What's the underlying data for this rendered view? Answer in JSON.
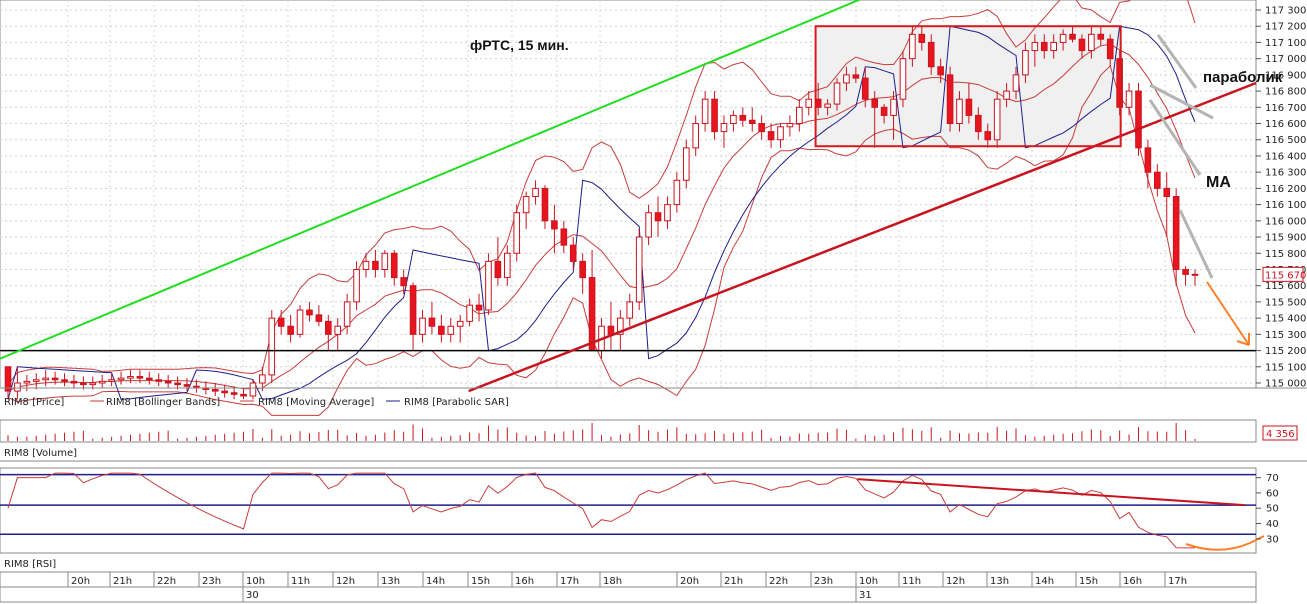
{
  "chart_data": {
    "type": "candlestick",
    "title": "фРТС, 15 мин.",
    "series_names": {
      "price": "RIM8 [Price]",
      "bollinger": "RIM8 [Bollinger Bands]",
      "ma": "RIM8 [Moving Average]",
      "sar": "RIM8 [Parabolic SAR]",
      "volume": "RIM8 [Volume]",
      "rsi": "RIM8 [RSI]"
    },
    "price_axis": {
      "ylim": [
        115000,
        117300
      ],
      "ticks": [
        "117 300",
        "117 200",
        "117 100",
        "117 000",
        "116 900",
        "116 800",
        "116 700",
        "116 600",
        "116 500",
        "116 400",
        "116 300",
        "116 200",
        "116 100",
        "116 000",
        "115 900",
        "115 800",
        "115 700",
        "115 600",
        "115 500",
        "115 400",
        "115 300",
        "115 200",
        "115 100",
        "115 000"
      ]
    },
    "last_price_label": "115 670",
    "volume_label": "4 356",
    "rsi_axis": {
      "ylim": [
        22,
        75
      ],
      "ticks": [
        "70",
        "60",
        "50",
        "40",
        "30"
      ],
      "levels": [
        72,
        52,
        33
      ]
    },
    "time_axis": {
      "hours": [
        "20h",
        "21h",
        "22h",
        "23h",
        "10h",
        "11h",
        "12h",
        "13h",
        "14h",
        "15h",
        "16h",
        "17h",
        "18h",
        "20h",
        "21h",
        "22h",
        "23h",
        "10h",
        "11h",
        "12h",
        "13h",
        "14h",
        "15h",
        "16h",
        "17h"
      ],
      "dates": [
        "30",
        "31"
      ]
    },
    "candles": [
      [
        115100,
        115100,
        114900,
        114950
      ],
      [
        114950,
        115100,
        114900,
        115000
      ],
      [
        115000,
        115050,
        114950,
        115010
      ],
      [
        115010,
        115060,
        114960,
        115020
      ],
      [
        115020,
        115080,
        114980,
        115030
      ],
      [
        115030,
        115070,
        114990,
        115020
      ],
      [
        115020,
        115060,
        114980,
        115010
      ],
      [
        115010,
        115050,
        114970,
        115000
      ],
      [
        115000,
        115040,
        114960,
        114990
      ],
      [
        114990,
        115040,
        114960,
        115000
      ],
      [
        115000,
        115050,
        114970,
        115010
      ],
      [
        115010,
        115060,
        114980,
        115020
      ],
      [
        115020,
        115070,
        114990,
        115030
      ],
      [
        115030,
        115080,
        115000,
        115040
      ],
      [
        115040,
        115080,
        115000,
        115030
      ],
      [
        115030,
        115070,
        114990,
        115020
      ],
      [
        115020,
        115060,
        114980,
        115010
      ],
      [
        115010,
        115050,
        114970,
        115000
      ],
      [
        115000,
        115040,
        114960,
        114990
      ],
      [
        114990,
        115030,
        114950,
        114980
      ],
      [
        114980,
        115020,
        114940,
        114970
      ],
      [
        114970,
        115010,
        114930,
        114960
      ],
      [
        114960,
        115000,
        114920,
        114950
      ],
      [
        114950,
        114990,
        114910,
        114940
      ],
      [
        114940,
        114980,
        114900,
        114930
      ],
      [
        114930,
        114970,
        114900,
        114920
      ],
      [
        114920,
        115020,
        114900,
        115000
      ],
      [
        115000,
        115100,
        114950,
        115050
      ],
      [
        115050,
        115450,
        115000,
        115400
      ],
      [
        115400,
        115450,
        115300,
        115350
      ],
      [
        115350,
        115420,
        115250,
        115300
      ],
      [
        115300,
        115480,
        115280,
        115450
      ],
      [
        115450,
        115500,
        115380,
        115420
      ],
      [
        115420,
        115480,
        115350,
        115380
      ],
      [
        115380,
        115420,
        115200,
        115300
      ],
      [
        115300,
        115400,
        115200,
        115350
      ],
      [
        115350,
        115550,
        115300,
        115500
      ],
      [
        115500,
        115750,
        115450,
        115700
      ],
      [
        115700,
        115800,
        115650,
        115750
      ],
      [
        115750,
        115820,
        115650,
        115700
      ],
      [
        115700,
        115820,
        115650,
        115800
      ],
      [
        115800,
        115820,
        115600,
        115650
      ],
      [
        115650,
        115700,
        115550,
        115600
      ],
      [
        115600,
        115620,
        115200,
        115300
      ],
      [
        115300,
        115450,
        115250,
        115400
      ],
      [
        115400,
        115500,
        115300,
        115350
      ],
      [
        115350,
        115420,
        115250,
        115300
      ],
      [
        115300,
        115400,
        115250,
        115350
      ],
      [
        115350,
        115420,
        115250,
        115380
      ],
      [
        115380,
        115520,
        115350,
        115480
      ],
      [
        115480,
        115550,
        115380,
        115450
      ],
      [
        115450,
        115800,
        115420,
        115750
      ],
      [
        115750,
        115900,
        115600,
        115650
      ],
      [
        115650,
        115850,
        115600,
        115800
      ],
      [
        115800,
        116100,
        115750,
        116050
      ],
      [
        116050,
        116180,
        115950,
        116150
      ],
      [
        116150,
        116250,
        116100,
        116200
      ],
      [
        116200,
        116220,
        115950,
        116000
      ],
      [
        116000,
        116100,
        115800,
        115950
      ],
      [
        115950,
        116000,
        115800,
        115850
      ],
      [
        115850,
        115900,
        115700,
        115750
      ],
      [
        115750,
        115800,
        115550,
        115650
      ],
      [
        115650,
        115820,
        115200,
        115200
      ],
      [
        115200,
        115400,
        115150,
        115350
      ],
      [
        115350,
        115500,
        115200,
        115300
      ],
      [
        115300,
        115450,
        115200,
        115400
      ],
      [
        115400,
        115550,
        115350,
        115500
      ],
      [
        115500,
        115950,
        115450,
        115900
      ],
      [
        115900,
        116100,
        115850,
        116050
      ],
      [
        116050,
        116150,
        115900,
        116000
      ],
      [
        116000,
        116150,
        115950,
        116100
      ],
      [
        116100,
        116300,
        116050,
        116250
      ],
      [
        116250,
        116500,
        116200,
        116450
      ],
      [
        116450,
        116650,
        116400,
        116600
      ],
      [
        116600,
        116800,
        116550,
        116750
      ],
      [
        116750,
        116800,
        116500,
        116550
      ],
      [
        116550,
        116650,
        116450,
        116600
      ],
      [
        116600,
        116680,
        116550,
        116650
      ],
      [
        116650,
        116700,
        116580,
        116620
      ],
      [
        116620,
        116700,
        116550,
        116600
      ],
      [
        116600,
        116650,
        116500,
        116550
      ],
      [
        116550,
        116600,
        116450,
        116500
      ],
      [
        116500,
        116600,
        116450,
        116580
      ],
      [
        116580,
        116650,
        116520,
        116600
      ],
      [
        116600,
        116750,
        116550,
        116700
      ],
      [
        116700,
        116800,
        116650,
        116750
      ],
      [
        116750,
        116850,
        116650,
        116700
      ],
      [
        116700,
        116750,
        116650,
        116720
      ],
      [
        116720,
        116880,
        116680,
        116850
      ],
      [
        116850,
        116950,
        116800,
        116900
      ],
      [
        116900,
        116950,
        116850,
        116880
      ],
      [
        116880,
        116950,
        116700,
        116750
      ],
      [
        116750,
        116800,
        116450,
        116700
      ],
      [
        116700,
        116720,
        116600,
        116650
      ],
      [
        116650,
        116800,
        116500,
        116750
      ],
      [
        116750,
        117050,
        116700,
        117000
      ],
      [
        117000,
        117200,
        116950,
        117150
      ],
      [
        117150,
        117200,
        117050,
        117100
      ],
      [
        117100,
        117150,
        116900,
        116950
      ],
      [
        116950,
        117000,
        116850,
        116900
      ],
      [
        116900,
        116950,
        116550,
        116600
      ],
      [
        116600,
        116800,
        116550,
        116750
      ],
      [
        116750,
        116850,
        116600,
        116650
      ],
      [
        116650,
        116700,
        116500,
        116550
      ],
      [
        116550,
        116600,
        116450,
        116500
      ],
      [
        116500,
        116800,
        116450,
        116750
      ],
      [
        116750,
        116850,
        116700,
        116800
      ],
      [
        116800,
        116950,
        116750,
        116900
      ],
      [
        116900,
        117100,
        116850,
        117050
      ],
      [
        117050,
        117150,
        116950,
        117100
      ],
      [
        117100,
        117150,
        117000,
        117050
      ],
      [
        117050,
        117150,
        117000,
        117100
      ],
      [
        117100,
        117180,
        117050,
        117150
      ],
      [
        117150,
        117200,
        117100,
        117120
      ],
      [
        117120,
        117150,
        117000,
        117050
      ],
      [
        117050,
        117200,
        117000,
        117150
      ],
      [
        117150,
        117200,
        117080,
        117120
      ],
      [
        117120,
        117150,
        116950,
        117000
      ],
      [
        117000,
        117050,
        116650,
        116700
      ],
      [
        116700,
        116850,
        116650,
        116800
      ],
      [
        116800,
        116850,
        116400,
        116450
      ],
      [
        116450,
        116500,
        116200,
        116300
      ],
      [
        116300,
        116350,
        116150,
        116200
      ],
      [
        116200,
        116300,
        115900,
        116150
      ],
      [
        116150,
        116200,
        115600,
        115700
      ],
      [
        115700,
        115720,
        115600,
        115670
      ],
      [
        115670,
        115700,
        115600,
        115670
      ]
    ]
  },
  "annotations": {
    "parabolic": "параболик",
    "ma": "MA"
  },
  "colors": {
    "up": "#ffffff",
    "down": "#e8141e",
    "candle_outline": "#c8141e",
    "bollinger": "#c83c3c",
    "sar": "#1e1e8c",
    "green_line": "#22dd22",
    "red_line": "#c8141e",
    "highlight_box": "#d7191e",
    "level_line": "#000000",
    "orange": "#ff7f27",
    "rsi_line": "#c83c3c",
    "rsi_level": "#1e1e8c"
  }
}
